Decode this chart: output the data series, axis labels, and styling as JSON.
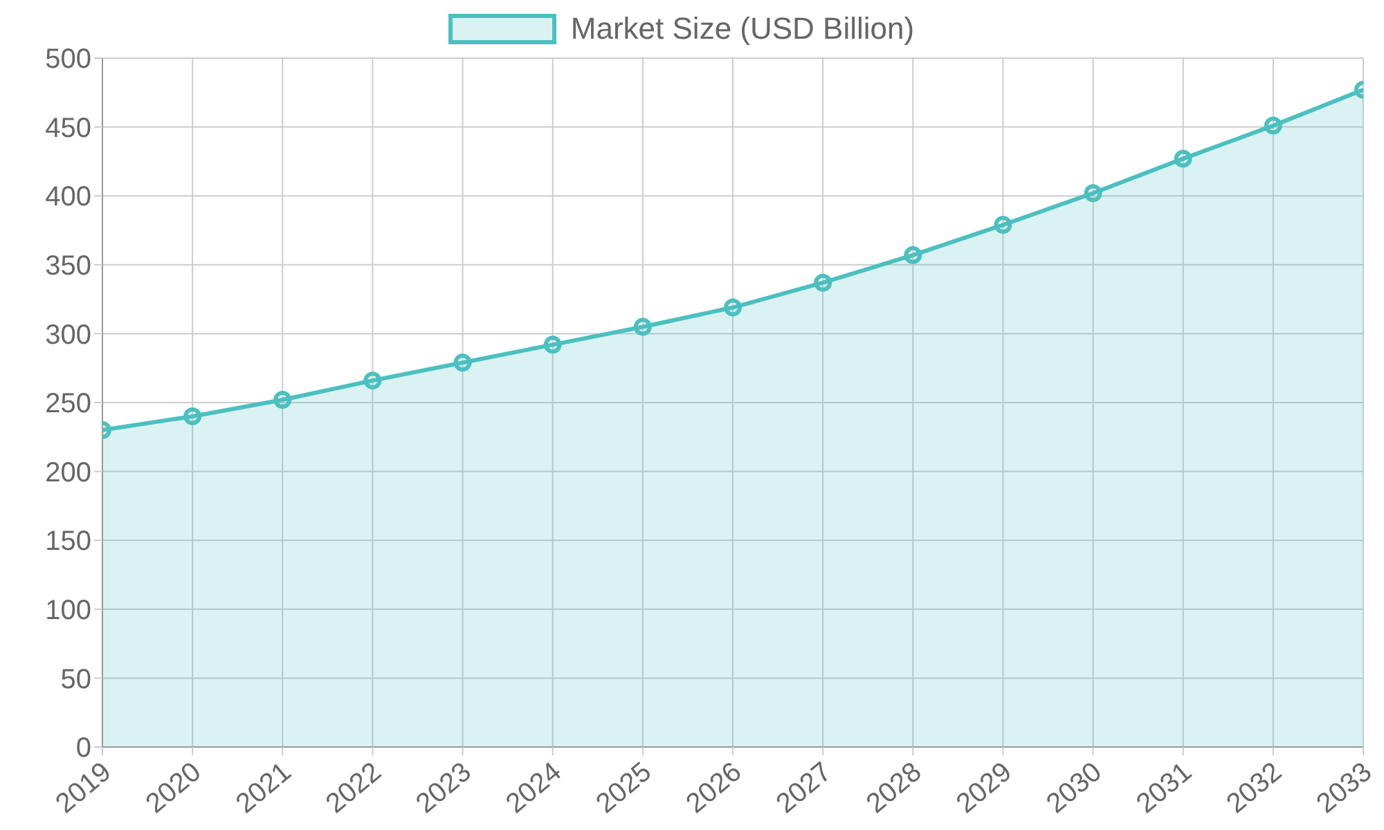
{
  "chart_data": {
    "type": "area",
    "categories": [
      "2019",
      "2020",
      "2021",
      "2022",
      "2023",
      "2024",
      "2025",
      "2026",
      "2027",
      "2028",
      "2029",
      "2030",
      "2031",
      "2032",
      "2033"
    ],
    "series": [
      {
        "name": "Market Size (USD Billion)",
        "color": "#4bc0c0",
        "values": [
          230,
          240,
          252,
          266,
          279,
          292,
          305,
          319,
          337,
          357,
          379,
          402,
          427,
          451,
          477
        ]
      }
    ],
    "ylim": [
      0,
      500
    ],
    "yticks": [
      0,
      50,
      100,
      150,
      200,
      250,
      300,
      350,
      400,
      450,
      500
    ],
    "grid": true,
    "legend": "top",
    "marker": "circle"
  }
}
